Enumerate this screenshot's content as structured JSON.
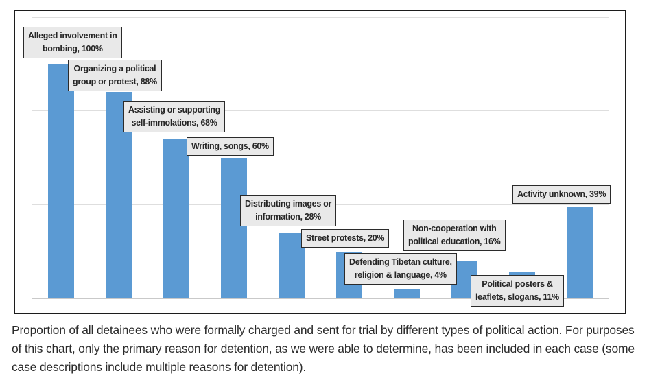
{
  "chart_data": {
    "type": "bar",
    "title": "",
    "xlabel": "",
    "ylabel": "",
    "unit": "%",
    "ylim": [
      0,
      120
    ],
    "gridline_step": 20,
    "grid": true,
    "legend": false,
    "bar_color": "#5b9ad3",
    "categories": [
      "Alleged involvement in bombing",
      "Organizing a political group or protest",
      "Assisting or supporting self-immolations",
      "Writing, songs",
      "Distributing images or information",
      "Street protests",
      "Defending Tibetan culture, religion & language",
      "Non-cooperation with political education",
      "Political posters & leaflets, slogans",
      "Activity unknown"
    ],
    "values": [
      100,
      88,
      68,
      60,
      28,
      20,
      4,
      16,
      11,
      39
    ],
    "data_labels": [
      {
        "lines": [
          "Alleged involvement in",
          "bombing, 100%"
        ]
      },
      {
        "lines": [
          "Organizing a political",
          "group or protest, 88%"
        ]
      },
      {
        "lines": [
          "Assisting or supporting",
          "self-immolations, 68%"
        ]
      },
      {
        "lines": [
          "Writing, songs, 60%"
        ]
      },
      {
        "lines": [
          "Distributing images or",
          "information, 28%"
        ]
      },
      {
        "lines": [
          "Street protests, 20%"
        ]
      },
      {
        "lines": [
          "Defending Tibetan culture,",
          "religion & language, 4%"
        ]
      },
      {
        "lines": [
          "Non-cooperation with",
          "political education, 16%"
        ]
      },
      {
        "lines": [
          "Political posters &",
          "leaflets, slogans, 11%"
        ]
      },
      {
        "lines": [
          "Activity unknown, 39%"
        ]
      }
    ]
  },
  "colors": {
    "bar": "#5b9ad3",
    "label_fill": "#e9e9e9",
    "label_border": "#2b2b2b",
    "gridline": "#dedede",
    "frame_border": "#1c1c1c"
  },
  "caption": "Proportion of all detainees who were formally charged and sent for trial by different types of political action. For purposes of this chart, only the primary reason for detention, as we were able to determine, has been included in each case (some case descriptions include multiple reasons for detention)."
}
